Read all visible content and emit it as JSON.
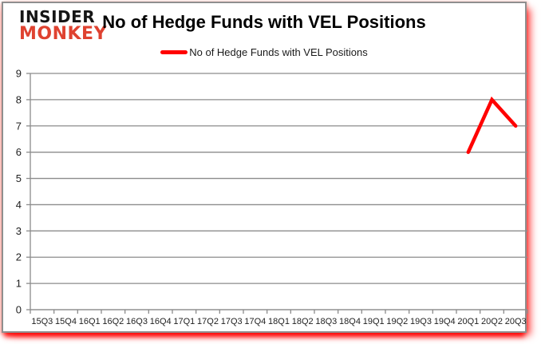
{
  "logo": {
    "line1": "INSIDER",
    "line2": "MONKEY"
  },
  "header": {
    "title": "No of Hedge Funds with VEL Positions"
  },
  "legend": {
    "label": "No of Hedge Funds with VEL Positions",
    "swatch_color": "#ff0000"
  },
  "colors": {
    "series_red": "#ff0000",
    "logo_red": "#df4230",
    "grid_gray": "#8c8c8c",
    "axis_gray": "#8c8c8c",
    "label_dark": "#1f1f1f",
    "frame_border": "#8f8f8f",
    "shadow_red": "#ff0000"
  },
  "chart_data": {
    "type": "line",
    "title": "No of Hedge Funds with VEL Positions",
    "categories": [
      "15Q3",
      "15Q4",
      "16Q1",
      "16Q2",
      "16Q3",
      "16Q4",
      "17Q1",
      "17Q2",
      "17Q3",
      "17Q4",
      "18Q1",
      "18Q2",
      "18Q3",
      "18Q4",
      "19Q1",
      "19Q2",
      "19Q3",
      "19Q4",
      "20Q1",
      "20Q2",
      "20Q3"
    ],
    "series": [
      {
        "name": "No of Hedge Funds with VEL Positions",
        "color": "#ff0000",
        "values": [
          null,
          null,
          null,
          null,
          null,
          null,
          null,
          null,
          null,
          null,
          null,
          null,
          null,
          null,
          null,
          null,
          null,
          null,
          6,
          8,
          7
        ]
      }
    ],
    "xlabel": "",
    "ylabel": "",
    "ylim": [
      0,
      9
    ],
    "ytick_step": 1,
    "yticks": [
      0,
      1,
      2,
      3,
      4,
      5,
      6,
      7,
      8,
      9
    ],
    "grid": true,
    "legend_position": "top-center"
  }
}
